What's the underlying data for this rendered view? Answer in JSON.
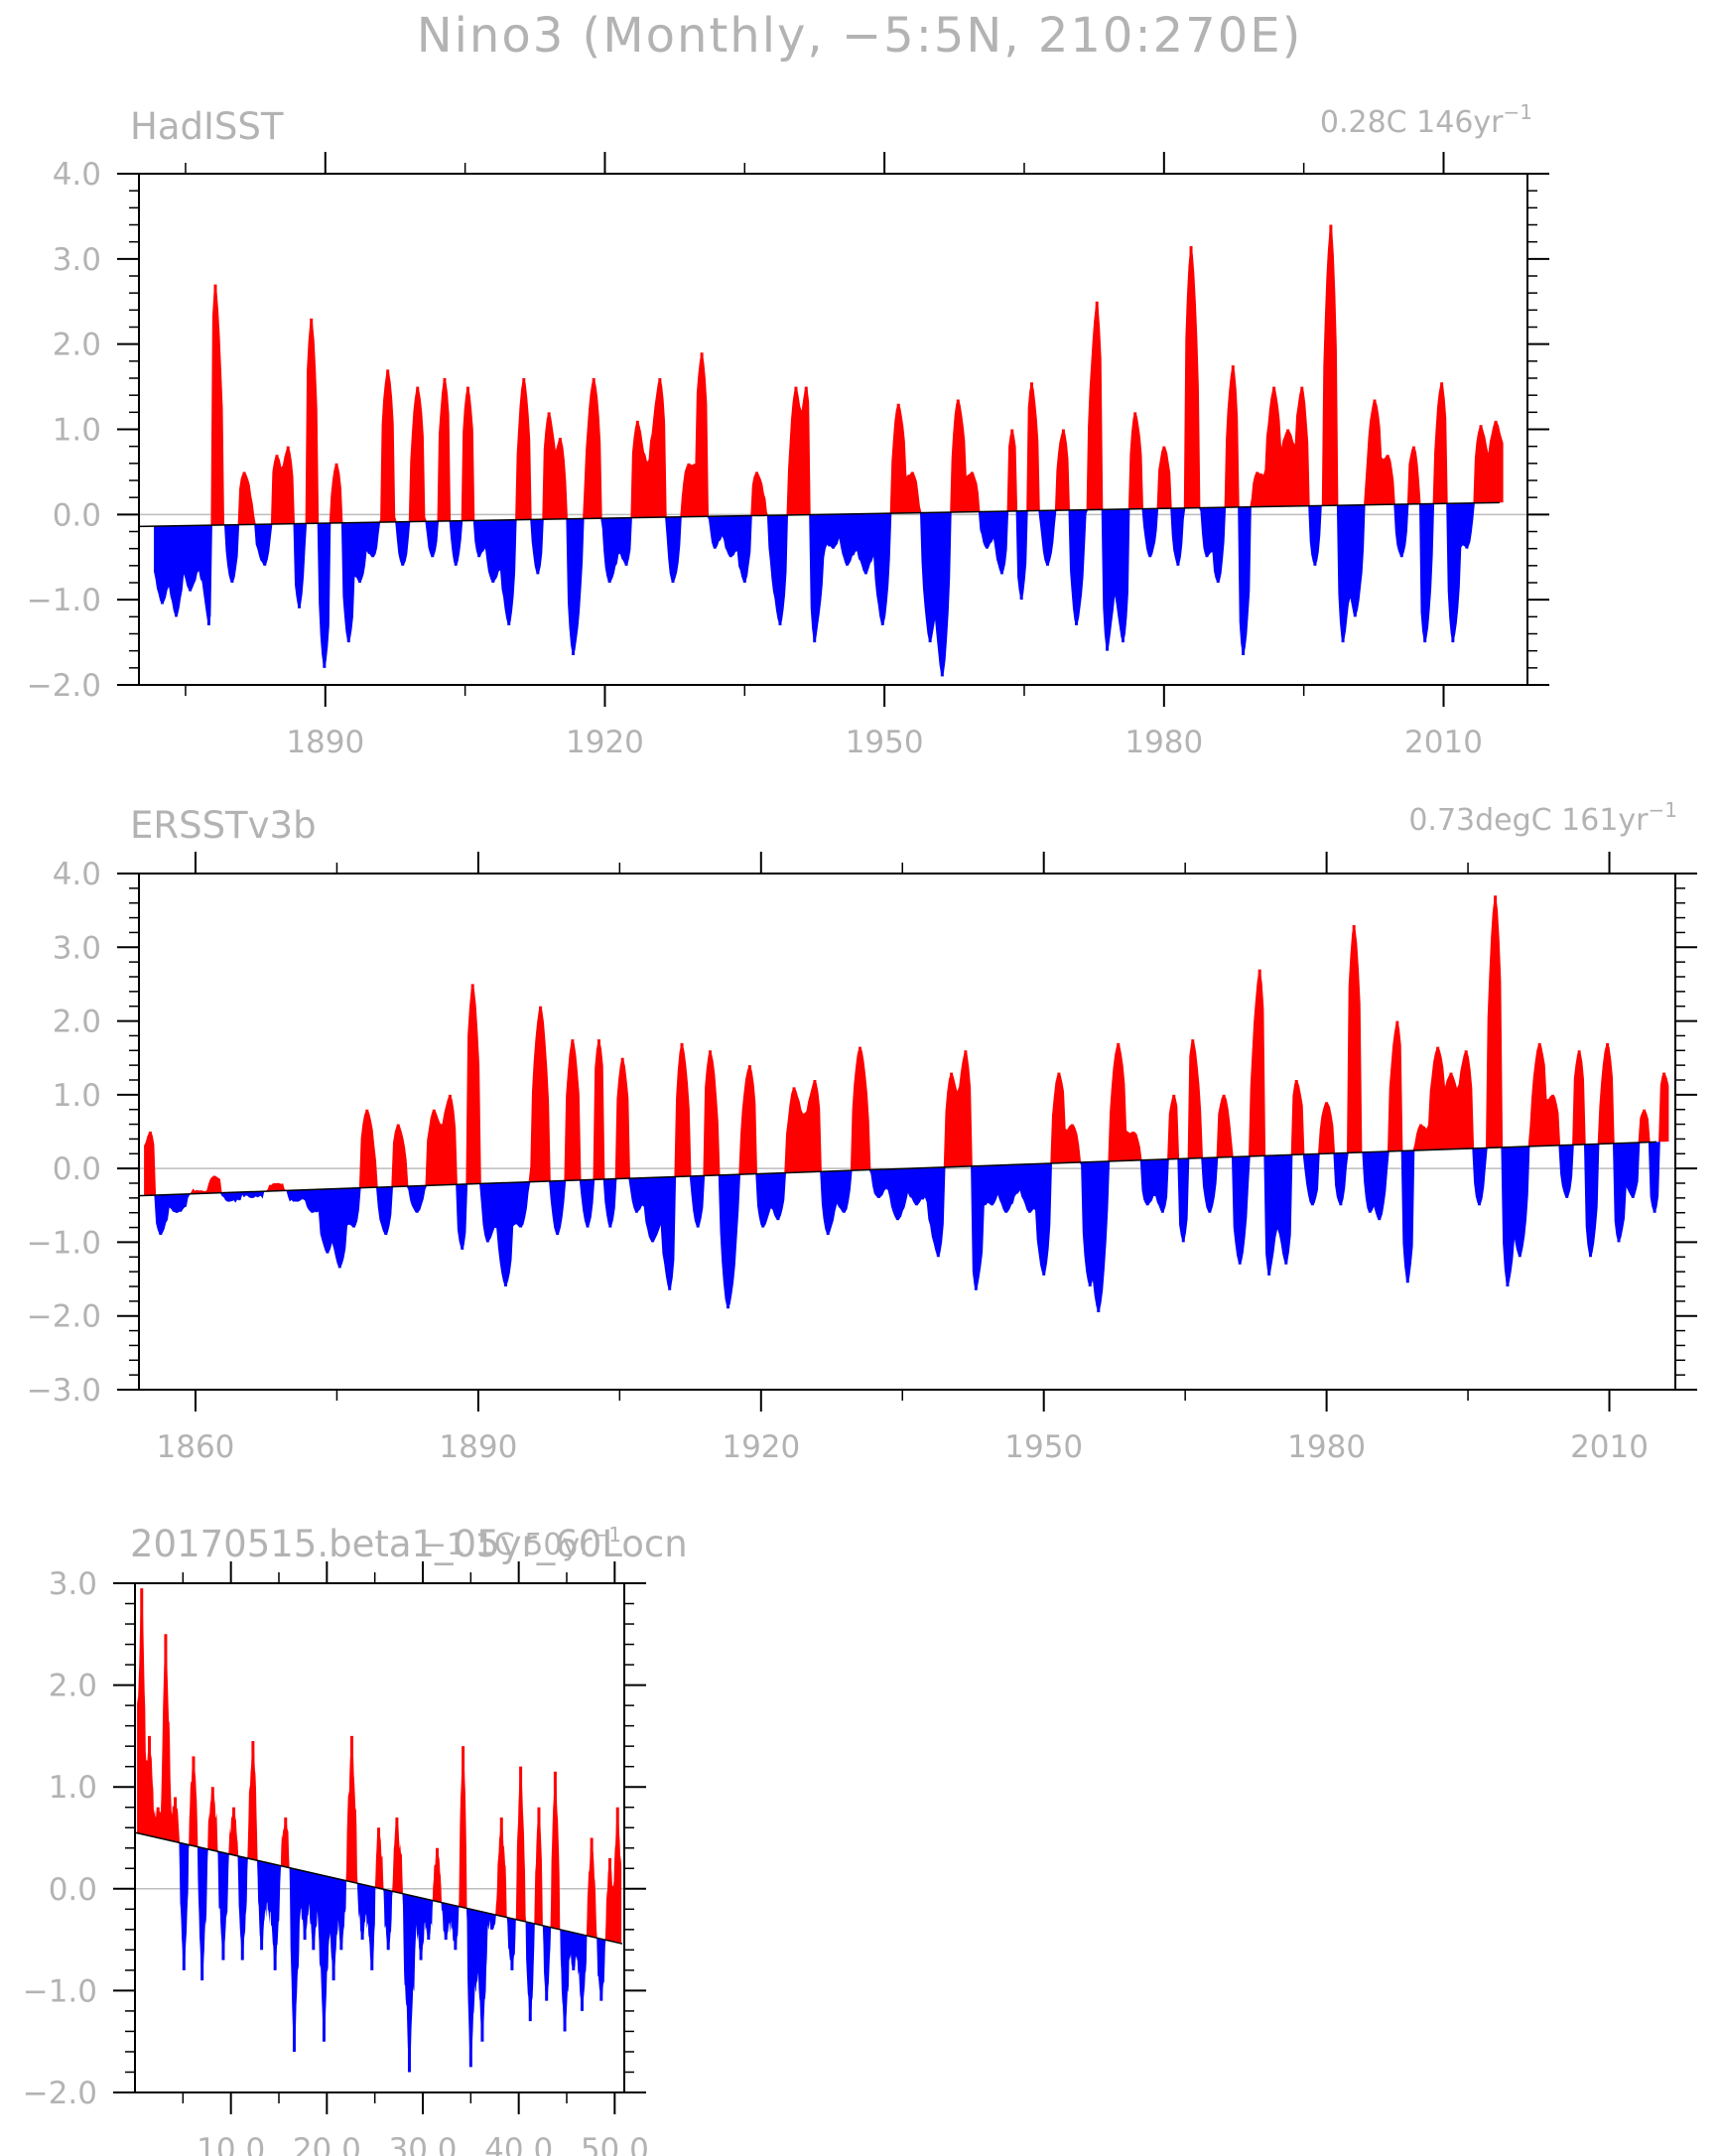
{
  "figure_title": "Nino3 (Monthly, −5:5N, 210:270E)",
  "chart_data": [
    {
      "type": "area",
      "name": "HadISST",
      "title": "HadISST",
      "trend_label": "0.28C 146yr",
      "trend_label_sup": "−1",
      "ylim": [
        -2.0,
        4.0
      ],
      "xlim": [
        1870,
        2019
      ],
      "yticks": [
        "4.0",
        "3.0",
        "2.0",
        "1.0",
        "0.0",
        "−1.0",
        "−2.0"
      ],
      "xticks": [
        "1890",
        "1920",
        "1950",
        "1980",
        "2010"
      ],
      "trend": {
        "x": [
          1870,
          2016
        ],
        "y": [
          -0.14,
          0.14
        ]
      },
      "positive_color": "#ff0000",
      "negative_color": "#0000ff",
      "grid": false,
      "peaks": [
        {
          "x": 1872.5,
          "y": -1.05
        },
        {
          "x": 1874.0,
          "y": -1.2
        },
        {
          "x": 1875.5,
          "y": -0.9
        },
        {
          "x": 1877.5,
          "y": -1.3
        },
        {
          "x": 1878.2,
          "y": 2.7
        },
        {
          "x": 1880.0,
          "y": -0.8
        },
        {
          "x": 1881.3,
          "y": 0.5
        },
        {
          "x": 1883.5,
          "y": -0.6
        },
        {
          "x": 1884.8,
          "y": 0.7
        },
        {
          "x": 1886.0,
          "y": 0.8
        },
        {
          "x": 1887.2,
          "y": -1.1
        },
        {
          "x": 1888.5,
          "y": 2.3
        },
        {
          "x": 1889.9,
          "y": -1.8
        },
        {
          "x": 1891.2,
          "y": 0.6
        },
        {
          "x": 1892.5,
          "y": -1.5
        },
        {
          "x": 1893.7,
          "y": -0.8
        },
        {
          "x": 1895.1,
          "y": -0.5
        },
        {
          "x": 1896.7,
          "y": 1.7
        },
        {
          "x": 1898.3,
          "y": -0.6
        },
        {
          "x": 1899.9,
          "y": 1.5
        },
        {
          "x": 1901.5,
          "y": -0.5
        },
        {
          "x": 1902.8,
          "y": 1.6
        },
        {
          "x": 1904.0,
          "y": -0.6
        },
        {
          "x": 1905.3,
          "y": 1.5
        },
        {
          "x": 1906.5,
          "y": -0.5
        },
        {
          "x": 1908.0,
          "y": -0.8
        },
        {
          "x": 1909.7,
          "y": -1.3
        },
        {
          "x": 1911.3,
          "y": 1.6
        },
        {
          "x": 1912.8,
          "y": -0.7
        },
        {
          "x": 1914.0,
          "y": 1.2
        },
        {
          "x": 1915.2,
          "y": 0.9
        },
        {
          "x": 1916.6,
          "y": -1.65
        },
        {
          "x": 1918.8,
          "y": 1.6
        },
        {
          "x": 1920.5,
          "y": -0.8
        },
        {
          "x": 1922.3,
          "y": -0.6
        },
        {
          "x": 1923.5,
          "y": 1.1
        },
        {
          "x": 1925.9,
          "y": 1.6
        },
        {
          "x": 1927.3,
          "y": -0.8
        },
        {
          "x": 1929.0,
          "y": 0.6
        },
        {
          "x": 1930.4,
          "y": 1.9
        },
        {
          "x": 1931.8,
          "y": -0.4
        },
        {
          "x": 1933.5,
          "y": -0.5
        },
        {
          "x": 1935.0,
          "y": -0.8
        },
        {
          "x": 1936.3,
          "y": 0.5
        },
        {
          "x": 1938.8,
          "y": -1.3
        },
        {
          "x": 1940.5,
          "y": 1.5
        },
        {
          "x": 1941.6,
          "y": 1.5
        },
        {
          "x": 1942.5,
          "y": -1.5
        },
        {
          "x": 1944.5,
          "y": -0.4
        },
        {
          "x": 1946.0,
          "y": -0.6
        },
        {
          "x": 1948.0,
          "y": -0.7
        },
        {
          "x": 1949.8,
          "y": -1.3
        },
        {
          "x": 1951.5,
          "y": 1.3
        },
        {
          "x": 1953.0,
          "y": 0.5
        },
        {
          "x": 1954.9,
          "y": -1.5
        },
        {
          "x": 1956.2,
          "y": -1.9
        },
        {
          "x": 1957.9,
          "y": 1.35
        },
        {
          "x": 1959.4,
          "y": 0.5
        },
        {
          "x": 1961.0,
          "y": -0.4
        },
        {
          "x": 1962.6,
          "y": -0.7
        },
        {
          "x": 1963.7,
          "y": 1.0
        },
        {
          "x": 1964.7,
          "y": -1.0
        },
        {
          "x": 1965.8,
          "y": 1.55
        },
        {
          "x": 1967.5,
          "y": -0.6
        },
        {
          "x": 1969.2,
          "y": 1.0
        },
        {
          "x": 1970.6,
          "y": -1.3
        },
        {
          "x": 1972.8,
          "y": 2.5
        },
        {
          "x": 1973.9,
          "y": -1.6
        },
        {
          "x": 1975.6,
          "y": -1.5
        },
        {
          "x": 1976.9,
          "y": 1.2
        },
        {
          "x": 1978.5,
          "y": -0.5
        },
        {
          "x": 1980.0,
          "y": 0.8
        },
        {
          "x": 1981.5,
          "y": -0.6
        },
        {
          "x": 1982.9,
          "y": 3.15
        },
        {
          "x": 1984.6,
          "y": -0.5
        },
        {
          "x": 1985.8,
          "y": -0.8
        },
        {
          "x": 1987.4,
          "y": 1.75
        },
        {
          "x": 1988.5,
          "y": -1.65
        },
        {
          "x": 1990.0,
          "y": 0.5
        },
        {
          "x": 1991.8,
          "y": 1.5
        },
        {
          "x": 1993.3,
          "y": 1.0
        },
        {
          "x": 1994.8,
          "y": 1.5
        },
        {
          "x": 1996.2,
          "y": -0.6
        },
        {
          "x": 1997.9,
          "y": 3.4
        },
        {
          "x": 1999.2,
          "y": -1.5
        },
        {
          "x": 2000.5,
          "y": -1.2
        },
        {
          "x": 2002.6,
          "y": 1.35
        },
        {
          "x": 2004.0,
          "y": 0.7
        },
        {
          "x": 2005.5,
          "y": -0.5
        },
        {
          "x": 2006.8,
          "y": 0.8
        },
        {
          "x": 2008.0,
          "y": -1.5
        },
        {
          "x": 2009.8,
          "y": 1.55
        },
        {
          "x": 2011.0,
          "y": -1.5
        },
        {
          "x": 2012.5,
          "y": -0.4
        },
        {
          "x": 2014.0,
          "y": 1.05
        },
        {
          "x": 2015.6,
          "y": 1.1
        }
      ]
    },
    {
      "type": "area",
      "name": "ERSSTv3b",
      "title": "ERSSTv3b",
      "trend_label": "0.73degC 161yr",
      "trend_label_sup": "−1",
      "ylim": [
        -3.0,
        4.0
      ],
      "xlim": [
        1854,
        2017
      ],
      "yticks": [
        "4.0",
        "3.0",
        "2.0",
        "1.0",
        "0.0",
        "−1.0",
        "−2.0",
        "−3.0"
      ],
      "xticks": [
        "1860",
        "1890",
        "1920",
        "1950",
        "1980",
        "2010"
      ],
      "trend": {
        "x": [
          1854,
          2015
        ],
        "y": [
          -0.37,
          0.36
        ]
      },
      "positive_color": "#ff0000",
      "negative_color": "#0000ff",
      "grid": false,
      "peaks": [
        {
          "x": 1855.2,
          "y": 0.5
        },
        {
          "x": 1856.3,
          "y": -0.9
        },
        {
          "x": 1858.0,
          "y": -0.6
        },
        {
          "x": 1860.5,
          "y": -0.3
        },
        {
          "x": 1862.0,
          "y": -0.1
        },
        {
          "x": 1863.5,
          "y": -0.45
        },
        {
          "x": 1866.0,
          "y": -0.4
        },
        {
          "x": 1868.5,
          "y": -0.2
        },
        {
          "x": 1870.8,
          "y": -0.45
        },
        {
          "x": 1872.4,
          "y": -0.6
        },
        {
          "x": 1874.0,
          "y": -1.15
        },
        {
          "x": 1875.3,
          "y": -1.35
        },
        {
          "x": 1876.8,
          "y": -0.8
        },
        {
          "x": 1878.2,
          "y": 0.8
        },
        {
          "x": 1880.2,
          "y": -0.9
        },
        {
          "x": 1881.5,
          "y": 0.6
        },
        {
          "x": 1883.5,
          "y": -0.6
        },
        {
          "x": 1885.3,
          "y": 0.8
        },
        {
          "x": 1887.0,
          "y": 1.0
        },
        {
          "x": 1888.3,
          "y": -1.1
        },
        {
          "x": 1889.4,
          "y": 2.5
        },
        {
          "x": 1891.0,
          "y": -1.0
        },
        {
          "x": 1892.9,
          "y": -1.6
        },
        {
          "x": 1894.5,
          "y": -0.8
        },
        {
          "x": 1896.6,
          "y": 2.2
        },
        {
          "x": 1898.4,
          "y": -0.9
        },
        {
          "x": 1900.0,
          "y": 1.75
        },
        {
          "x": 1901.6,
          "y": -0.8
        },
        {
          "x": 1902.8,
          "y": 1.75
        },
        {
          "x": 1904.0,
          "y": -0.8
        },
        {
          "x": 1905.3,
          "y": 1.5
        },
        {
          "x": 1906.8,
          "y": -0.6
        },
        {
          "x": 1908.5,
          "y": -1.0
        },
        {
          "x": 1910.3,
          "y": -1.65
        },
        {
          "x": 1911.6,
          "y": 1.7
        },
        {
          "x": 1913.3,
          "y": -0.8
        },
        {
          "x": 1914.6,
          "y": 1.6
        },
        {
          "x": 1916.5,
          "y": -1.9
        },
        {
          "x": 1918.8,
          "y": 1.4
        },
        {
          "x": 1920.2,
          "y": -0.8
        },
        {
          "x": 1921.8,
          "y": -0.7
        },
        {
          "x": 1923.5,
          "y": 1.1
        },
        {
          "x": 1925.7,
          "y": 1.2
        },
        {
          "x": 1927.1,
          "y": -0.9
        },
        {
          "x": 1928.8,
          "y": -0.6
        },
        {
          "x": 1930.5,
          "y": 1.65
        },
        {
          "x": 1932.5,
          "y": -0.4
        },
        {
          "x": 1934.5,
          "y": -0.7
        },
        {
          "x": 1936.5,
          "y": -0.5
        },
        {
          "x": 1938.8,
          "y": -1.2
        },
        {
          "x": 1940.2,
          "y": 1.3
        },
        {
          "x": 1941.7,
          "y": 1.6
        },
        {
          "x": 1942.8,
          "y": -1.65
        },
        {
          "x": 1944.5,
          "y": -0.5
        },
        {
          "x": 1946.0,
          "y": -0.6
        },
        {
          "x": 1948.5,
          "y": -0.6
        },
        {
          "x": 1950.0,
          "y": -1.45
        },
        {
          "x": 1951.6,
          "y": 1.3
        },
        {
          "x": 1953.0,
          "y": 0.6
        },
        {
          "x": 1954.9,
          "y": -1.6
        },
        {
          "x": 1955.8,
          "y": -1.95
        },
        {
          "x": 1957.9,
          "y": 1.7
        },
        {
          "x": 1959.5,
          "y": 0.5
        },
        {
          "x": 1961.0,
          "y": -0.5
        },
        {
          "x": 1962.6,
          "y": -0.6
        },
        {
          "x": 1963.8,
          "y": 1.0
        },
        {
          "x": 1964.8,
          "y": -1.0
        },
        {
          "x": 1965.8,
          "y": 1.75
        },
        {
          "x": 1967.6,
          "y": -0.6
        },
        {
          "x": 1969.1,
          "y": 1.0
        },
        {
          "x": 1970.8,
          "y": -1.3
        },
        {
          "x": 1972.9,
          "y": 2.7
        },
        {
          "x": 1973.9,
          "y": -1.45
        },
        {
          "x": 1975.7,
          "y": -1.3
        },
        {
          "x": 1976.8,
          "y": 1.2
        },
        {
          "x": 1978.5,
          "y": -0.5
        },
        {
          "x": 1980.0,
          "y": 0.9
        },
        {
          "x": 1981.5,
          "y": -0.5
        },
        {
          "x": 1982.9,
          "y": 3.3
        },
        {
          "x": 1984.6,
          "y": -0.6
        },
        {
          "x": 1985.6,
          "y": -0.7
        },
        {
          "x": 1987.5,
          "y": 2.0
        },
        {
          "x": 1988.6,
          "y": -1.55
        },
        {
          "x": 1990.0,
          "y": 0.6
        },
        {
          "x": 1991.8,
          "y": 1.65
        },
        {
          "x": 1993.2,
          "y": 1.3
        },
        {
          "x": 1994.8,
          "y": 1.6
        },
        {
          "x": 1996.2,
          "y": -0.5
        },
        {
          "x": 1997.9,
          "y": 3.7
        },
        {
          "x": 1999.2,
          "y": -1.6
        },
        {
          "x": 2000.5,
          "y": -1.2
        },
        {
          "x": 2002.6,
          "y": 1.7
        },
        {
          "x": 2004.0,
          "y": 1.0
        },
        {
          "x": 2005.5,
          "y": -0.4
        },
        {
          "x": 2006.8,
          "y": 1.6
        },
        {
          "x": 2008.0,
          "y": -1.2
        },
        {
          "x": 2009.8,
          "y": 1.7
        },
        {
          "x": 2011.0,
          "y": -1.0
        },
        {
          "x": 2012.5,
          "y": -0.4
        },
        {
          "x": 2013.7,
          "y": 0.8
        },
        {
          "x": 2014.8,
          "y": -0.6
        },
        {
          "x": 2015.8,
          "y": 1.3
        }
      ]
    },
    {
      "type": "area",
      "name": "20170515.beta1_05yr_60Locn",
      "title": "20170515.beta1_05yr_60Locn",
      "trend_label": "−1.1C 50yr",
      "trend_label_sup": "−1",
      "ylim": [
        -2.0,
        3.0
      ],
      "xlim": [
        0,
        51
      ],
      "yticks": [
        "3.0",
        "2.0",
        "1.0",
        "0.0",
        "−1.0",
        "−2.0"
      ],
      "xticks": [
        "10.0",
        "20.0",
        "30.0",
        "40.0",
        "50.0"
      ],
      "trend": {
        "x": [
          0.1,
          50.8
        ],
        "y": [
          0.55,
          -0.54
        ]
      },
      "positive_color": "#ff0000",
      "negative_color": "#0000ff",
      "grid": false,
      "peaks": [
        {
          "x": 0.7,
          "y": 2.95
        },
        {
          "x": 1.5,
          "y": 1.5
        },
        {
          "x": 2.4,
          "y": 0.8
        },
        {
          "x": 3.2,
          "y": 2.5
        },
        {
          "x": 4.2,
          "y": 0.9
        },
        {
          "x": 5.1,
          "y": -0.8
        },
        {
          "x": 6.1,
          "y": 1.3
        },
        {
          "x": 7.0,
          "y": -0.9
        },
        {
          "x": 8.1,
          "y": 1.0
        },
        {
          "x": 9.2,
          "y": -0.7
        },
        {
          "x": 10.3,
          "y": 0.8
        },
        {
          "x": 11.2,
          "y": -0.7
        },
        {
          "x": 12.3,
          "y": 1.45
        },
        {
          "x": 13.2,
          "y": -0.6
        },
        {
          "x": 14.6,
          "y": -0.8
        },
        {
          "x": 15.7,
          "y": 0.7
        },
        {
          "x": 16.6,
          "y": -1.6
        },
        {
          "x": 17.7,
          "y": -0.5
        },
        {
          "x": 18.6,
          "y": -0.6
        },
        {
          "x": 19.7,
          "y": -1.5
        },
        {
          "x": 20.7,
          "y": -0.9
        },
        {
          "x": 21.5,
          "y": -0.6
        },
        {
          "x": 22.6,
          "y": 1.5
        },
        {
          "x": 23.7,
          "y": -0.5
        },
        {
          "x": 24.7,
          "y": -0.8
        },
        {
          "x": 25.4,
          "y": 0.6
        },
        {
          "x": 26.4,
          "y": -0.6
        },
        {
          "x": 27.3,
          "y": 0.7
        },
        {
          "x": 28.6,
          "y": -1.8
        },
        {
          "x": 29.8,
          "y": -0.7
        },
        {
          "x": 30.6,
          "y": -0.5
        },
        {
          "x": 31.5,
          "y": 0.4
        },
        {
          "x": 32.4,
          "y": -0.5
        },
        {
          "x": 33.4,
          "y": -0.6
        },
        {
          "x": 34.2,
          "y": 1.4
        },
        {
          "x": 35.0,
          "y": -1.75
        },
        {
          "x": 36.2,
          "y": -1.5
        },
        {
          "x": 37.2,
          "y": -0.4
        },
        {
          "x": 38.2,
          "y": 0.7
        },
        {
          "x": 39.3,
          "y": -0.8
        },
        {
          "x": 40.2,
          "y": 1.2
        },
        {
          "x": 41.2,
          "y": -1.3
        },
        {
          "x": 42.1,
          "y": 0.8
        },
        {
          "x": 42.9,
          "y": -1.1
        },
        {
          "x": 43.8,
          "y": 1.15
        },
        {
          "x": 44.8,
          "y": -1.4
        },
        {
          "x": 45.7,
          "y": -0.8
        },
        {
          "x": 46.6,
          "y": -1.2
        },
        {
          "x": 47.6,
          "y": 0.5
        },
        {
          "x": 48.6,
          "y": -1.1
        },
        {
          "x": 49.5,
          "y": 0.3
        },
        {
          "x": 50.3,
          "y": 0.8
        }
      ]
    }
  ]
}
